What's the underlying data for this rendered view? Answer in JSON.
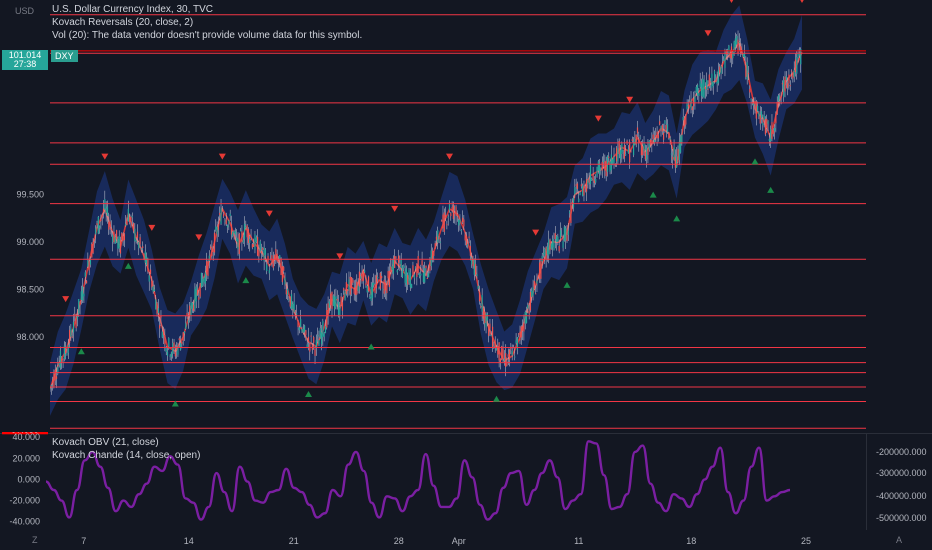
{
  "header": {
    "currency": "USD",
    "title_line": "U.S. Dollar Currency Index, 30, TVC",
    "indicator1": "Kovach Reversals (20, close, 2)",
    "indicator2": "Vol (20): The data vendor doesn't provide volume data for this symbol.",
    "ticker": "DXY",
    "last_price": "101.014",
    "countdown": "27:38"
  },
  "lower_pane": {
    "indicator1": "Kovach OBV (21, close)",
    "indicator2": "Kovach Chande (14, close, open)"
  },
  "footer": {
    "left_glyph": "Z",
    "right_glyph": "A",
    "settings_icon": "gear-icon"
  },
  "colors": {
    "background": "#131722",
    "level_line": "#f23645",
    "candle_up": "#26a69a",
    "candle_down": "#ef5350",
    "band": "#1e3a8a",
    "mid_line": "#e53935",
    "buy_marker": "#1b8a4a",
    "sell_marker": "#e53935",
    "oscillator": "#7b1fa2",
    "text": "#d1d4dc",
    "axis_text": "#b2b5be"
  },
  "chart_data": [
    {
      "type": "line",
      "description_of_series": "candlestick price with reversal markers",
      "y_scale": "linear",
      "ylim": [
        97.0,
        101.55
      ],
      "y_ticks": [
        "99.500",
        "99.000",
        "98.500",
        "98.000"
      ],
      "level_lines": [
        "101.394",
        "100.989",
        "100.466",
        "100.045",
        "99.820",
        "99.405",
        "98.820",
        "98.224",
        "97.890",
        "97.731",
        "97.626",
        "97.474",
        "97.321",
        "97.039"
      ],
      "x_ticks": [
        "7",
        "14",
        "21",
        "28",
        "Apr",
        "11",
        "18",
        "25"
      ],
      "series": [
        {
          "values": [
            97.45,
            97.7,
            97.85,
            98.1,
            98.4,
            98.8,
            99.15,
            99.35,
            99.1,
            98.95,
            99.3,
            99.05,
            98.85,
            98.6,
            98.2,
            97.9,
            97.85,
            98.0,
            98.3,
            98.5,
            98.7,
            99.0,
            99.35,
            99.2,
            98.95,
            99.15,
            99.0,
            98.9,
            98.75,
            98.85,
            98.6,
            98.3,
            98.1,
            97.95,
            97.9,
            98.1,
            98.4,
            98.3,
            98.55,
            98.5,
            98.7,
            98.45,
            98.6,
            98.55,
            98.8,
            98.7,
            98.6,
            98.75,
            98.65,
            98.9,
            99.15,
            99.35,
            99.3,
            99.1,
            98.8,
            98.4,
            98.1,
            97.9,
            97.75,
            97.8,
            98.0,
            98.3,
            98.55,
            98.8,
            99.0,
            99.0,
            99.1,
            99.5,
            99.55,
            99.7,
            99.75,
            99.8,
            99.9,
            100.0,
            99.95,
            100.1,
            99.95,
            100.05,
            100.2,
            100.15,
            99.8,
            100.3,
            100.5,
            100.6,
            100.65,
            100.7,
            100.9,
            101.0,
            101.1,
            100.8,
            100.4,
            100.3,
            100.1,
            100.45,
            100.7,
            100.8,
            101.0
          ],
          "markers": [
            {
              "i": 2,
              "dir": "sell"
            },
            {
              "i": 4,
              "dir": "buy"
            },
            {
              "i": 7,
              "dir": "sell"
            },
            {
              "i": 10,
              "dir": "buy"
            },
            {
              "i": 13,
              "dir": "sell"
            },
            {
              "i": 16,
              "dir": "buy"
            },
            {
              "i": 19,
              "dir": "sell"
            },
            {
              "i": 22,
              "dir": "sell"
            },
            {
              "i": 25,
              "dir": "buy"
            },
            {
              "i": 28,
              "dir": "sell"
            },
            {
              "i": 33,
              "dir": "buy"
            },
            {
              "i": 37,
              "dir": "sell"
            },
            {
              "i": 41,
              "dir": "buy"
            },
            {
              "i": 44,
              "dir": "sell"
            },
            {
              "i": 51,
              "dir": "sell"
            },
            {
              "i": 57,
              "dir": "buy"
            },
            {
              "i": 62,
              "dir": "sell"
            },
            {
              "i": 66,
              "dir": "buy"
            },
            {
              "i": 70,
              "dir": "sell"
            },
            {
              "i": 74,
              "dir": "sell"
            },
            {
              "i": 77,
              "dir": "buy"
            },
            {
              "i": 80,
              "dir": "buy"
            },
            {
              "i": 84,
              "dir": "sell"
            },
            {
              "i": 87,
              "dir": "sell"
            },
            {
              "i": 90,
              "dir": "buy"
            },
            {
              "i": 92,
              "dir": "buy"
            },
            {
              "i": 96,
              "dir": "sell"
            }
          ]
        }
      ]
    },
    {
      "type": "line",
      "y_scale": "linear",
      "ylim": [
        -45,
        42
      ],
      "y_ticks_left": [
        "40.000",
        "20.000",
        "0.000",
        "-20.000",
        "-40.000"
      ],
      "y_ticks_right": [
        "-200000.000",
        "-300000.000",
        "-400000.000",
        "-500000.000"
      ],
      "series": [
        {
          "values": [
            -2,
            -10,
            -20,
            -36,
            -10,
            18,
            26,
            12,
            -8,
            -30,
            -20,
            -26,
            -14,
            -4,
            12,
            8,
            22,
            14,
            -18,
            -22,
            -38,
            -26,
            6,
            -12,
            -30,
            12,
            -2,
            -20,
            -22,
            -12,
            -10,
            10,
            -8,
            -12,
            -24,
            -36,
            -32,
            -10,
            -16,
            14,
            26,
            8,
            -22,
            -36,
            -16,
            -18,
            -30,
            -16,
            -10,
            24,
            -6,
            -26,
            -26,
            -18,
            18,
            2,
            -24,
            -38,
            -32,
            -8,
            6,
            8,
            -24,
            -10,
            6,
            18,
            2,
            -28,
            -20,
            -14,
            36,
            34,
            4,
            -28,
            -26,
            -14,
            26,
            32,
            -4,
            -22,
            -30,
            -14,
            -18,
            -26,
            -14,
            0,
            12,
            30,
            -12,
            -32,
            -20,
            12,
            30,
            -20,
            -16,
            -12,
            -10
          ]
        }
      ]
    }
  ]
}
